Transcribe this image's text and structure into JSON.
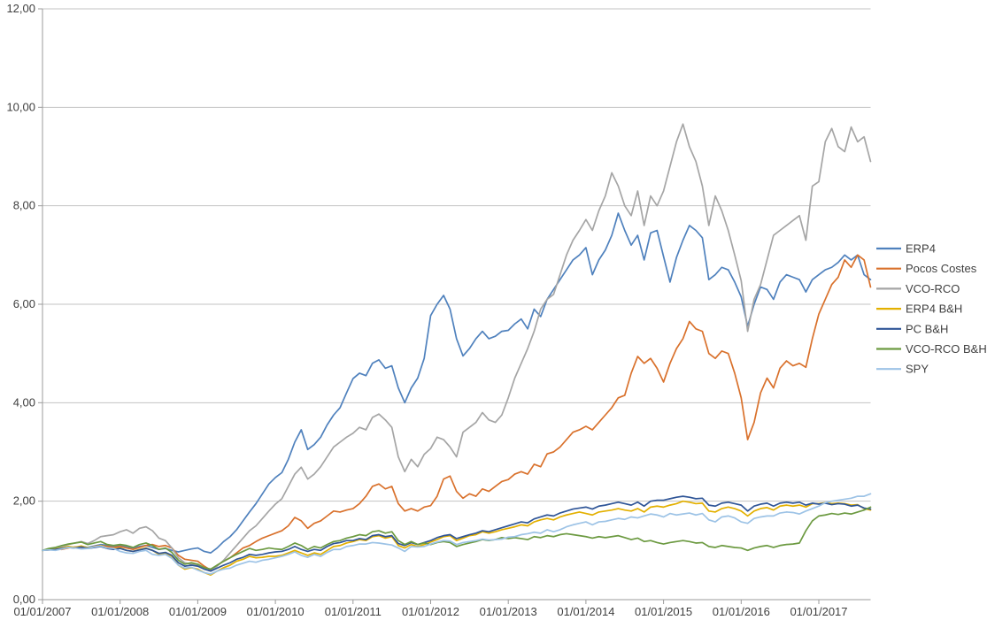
{
  "chart_data": {
    "type": "line",
    "title": "",
    "xlabel": "",
    "ylabel": "",
    "grid": "horizontal",
    "legend_position": "right",
    "x_axis": {
      "tick_labels": [
        "01/01/2007",
        "01/01/2008",
        "01/01/2009",
        "01/01/2010",
        "01/01/2011",
        "01/01/2012",
        "01/01/2013",
        "01/01/2014",
        "01/01/2015",
        "01/01/2016",
        "01/01/2017"
      ],
      "tick_years": [
        2007,
        2008,
        2009,
        2010,
        2011,
        2012,
        2013,
        2014,
        2015,
        2016,
        2017
      ]
    },
    "y_axis": {
      "tick_labels": [
        "0,00",
        "2,00",
        "4,00",
        "6,00",
        "8,00",
        "10,00",
        "12,00"
      ],
      "tick_values": [
        0,
        2,
        4,
        6,
        8,
        10,
        12
      ],
      "ylim": [
        0,
        12
      ]
    },
    "x_start": 2007.0,
    "x_step_years": 0.0833333,
    "series": [
      {
        "name": "ERP4",
        "color": "#4F81BD",
        "values": [
          1.0,
          1.02,
          1.01,
          1.04,
          1.06,
          1.05,
          1.08,
          1.06,
          1.09,
          1.12,
          1.1,
          1.08,
          1.1,
          1.07,
          1.05,
          1.08,
          1.1,
          1.06,
          1.02,
          1.04,
          1.0,
          0.97,
          1.0,
          1.03,
          1.05,
          0.98,
          0.95,
          1.05,
          1.18,
          1.28,
          1.42,
          1.6,
          1.78,
          1.95,
          2.15,
          2.35,
          2.48,
          2.58,
          2.85,
          3.2,
          3.45,
          3.05,
          3.15,
          3.3,
          3.55,
          3.75,
          3.9,
          4.2,
          4.49,
          4.6,
          4.55,
          4.8,
          4.87,
          4.7,
          4.75,
          4.3,
          4.0,
          4.3,
          4.5,
          4.9,
          5.77,
          6.0,
          6.18,
          5.9,
          5.3,
          4.95,
          5.1,
          5.3,
          5.45,
          5.3,
          5.35,
          5.45,
          5.47,
          5.6,
          5.7,
          5.5,
          5.9,
          5.75,
          6.1,
          6.3,
          6.5,
          6.7,
          6.9,
          7.0,
          7.15,
          6.6,
          6.9,
          7.1,
          7.4,
          7.85,
          7.5,
          7.2,
          7.4,
          6.9,
          7.45,
          7.5,
          6.97,
          6.45,
          6.95,
          7.3,
          7.6,
          7.5,
          7.35,
          6.5,
          6.6,
          6.75,
          6.7,
          6.45,
          6.15,
          5.55,
          6.0,
          6.35,
          6.3,
          6.1,
          6.45,
          6.6,
          6.55,
          6.5,
          6.25,
          6.5,
          6.6,
          6.7,
          6.75,
          6.85,
          7.0,
          6.9,
          7.0,
          6.6,
          6.5
        ]
      },
      {
        "name": "Pocos Costes",
        "color": "#D9712C",
        "values": [
          1.0,
          1.01,
          1.03,
          1.02,
          1.05,
          1.07,
          1.06,
          1.04,
          1.08,
          1.1,
          1.08,
          1.06,
          1.08,
          1.05,
          1.02,
          1.06,
          1.1,
          1.12,
          1.08,
          1.1,
          1.05,
          0.9,
          0.82,
          0.8,
          0.78,
          0.68,
          0.6,
          0.7,
          0.78,
          0.85,
          0.95,
          1.05,
          1.1,
          1.18,
          1.25,
          1.3,
          1.35,
          1.4,
          1.5,
          1.67,
          1.6,
          1.45,
          1.55,
          1.6,
          1.7,
          1.8,
          1.78,
          1.82,
          1.85,
          1.95,
          2.1,
          2.3,
          2.35,
          2.25,
          2.3,
          1.95,
          1.8,
          1.85,
          1.8,
          1.88,
          1.91,
          2.1,
          2.45,
          2.51,
          2.2,
          2.06,
          2.15,
          2.1,
          2.25,
          2.2,
          2.3,
          2.4,
          2.44,
          2.55,
          2.6,
          2.55,
          2.75,
          2.7,
          2.96,
          3.0,
          3.1,
          3.25,
          3.4,
          3.45,
          3.52,
          3.45,
          3.6,
          3.75,
          3.9,
          4.1,
          4.15,
          4.6,
          4.94,
          4.8,
          4.9,
          4.7,
          4.42,
          4.8,
          5.1,
          5.3,
          5.65,
          5.5,
          5.45,
          5.0,
          4.9,
          5.05,
          5.0,
          4.6,
          4.1,
          3.25,
          3.6,
          4.2,
          4.5,
          4.3,
          4.7,
          4.85,
          4.75,
          4.8,
          4.72,
          5.3,
          5.8,
          6.1,
          6.4,
          6.55,
          6.9,
          6.75,
          7.0,
          6.9,
          6.35
        ]
      },
      {
        "name": "VCO-RCO",
        "color": "#A5A5A5",
        "values": [
          1.0,
          1.03,
          1.05,
          1.08,
          1.12,
          1.15,
          1.18,
          1.14,
          1.2,
          1.28,
          1.3,
          1.32,
          1.38,
          1.42,
          1.35,
          1.45,
          1.48,
          1.4,
          1.25,
          1.2,
          1.05,
          0.85,
          0.75,
          0.72,
          0.7,
          0.62,
          0.58,
          0.68,
          0.8,
          0.95,
          1.1,
          1.25,
          1.4,
          1.5,
          1.65,
          1.8,
          1.94,
          2.05,
          2.3,
          2.55,
          2.69,
          2.45,
          2.55,
          2.7,
          2.9,
          3.1,
          3.2,
          3.3,
          3.38,
          3.5,
          3.45,
          3.7,
          3.77,
          3.65,
          3.5,
          2.9,
          2.6,
          2.85,
          2.7,
          2.95,
          3.07,
          3.3,
          3.25,
          3.1,
          2.9,
          3.4,
          3.5,
          3.6,
          3.8,
          3.65,
          3.6,
          3.75,
          4.1,
          4.5,
          4.8,
          5.1,
          5.45,
          5.9,
          6.1,
          6.2,
          6.6,
          7.0,
          7.3,
          7.5,
          7.72,
          7.5,
          7.9,
          8.2,
          8.67,
          8.4,
          8.0,
          7.8,
          8.3,
          7.6,
          8.2,
          8.0,
          8.3,
          8.8,
          9.3,
          9.66,
          9.2,
          8.9,
          8.4,
          7.6,
          8.2,
          7.9,
          7.5,
          7.0,
          6.48,
          5.45,
          6.1,
          6.4,
          6.9,
          7.4,
          7.5,
          7.6,
          7.7,
          7.8,
          7.3,
          8.4,
          8.49,
          9.3,
          9.57,
          9.2,
          9.1,
          9.6,
          9.3,
          9.4,
          8.9
        ]
      },
      {
        "name": "ERP4 B&H",
        "color": "#E3B000",
        "values": [
          1.0,
          1.02,
          1.03,
          1.05,
          1.08,
          1.06,
          1.09,
          1.05,
          1.07,
          1.1,
          1.05,
          1.03,
          1.05,
          1.0,
          0.98,
          1.02,
          1.05,
          1.0,
          0.92,
          0.95,
          0.88,
          0.7,
          0.62,
          0.65,
          0.62,
          0.55,
          0.5,
          0.58,
          0.65,
          0.7,
          0.78,
          0.82,
          0.88,
          0.85,
          0.86,
          0.88,
          0.88,
          0.9,
          0.95,
          1.0,
          0.95,
          0.9,
          0.95,
          0.92,
          1.0,
          1.08,
          1.1,
          1.15,
          1.18,
          1.22,
          1.2,
          1.28,
          1.3,
          1.25,
          1.28,
          1.1,
          1.05,
          1.12,
          1.08,
          1.12,
          1.17,
          1.22,
          1.28,
          1.3,
          1.2,
          1.25,
          1.3,
          1.32,
          1.38,
          1.35,
          1.38,
          1.42,
          1.45,
          1.48,
          1.52,
          1.5,
          1.58,
          1.62,
          1.65,
          1.62,
          1.68,
          1.72,
          1.75,
          1.78,
          1.75,
          1.72,
          1.78,
          1.8,
          1.82,
          1.85,
          1.82,
          1.8,
          1.85,
          1.78,
          1.88,
          1.9,
          1.88,
          1.92,
          1.95,
          2.0,
          1.98,
          1.95,
          1.96,
          1.8,
          1.78,
          1.85,
          1.88,
          1.85,
          1.8,
          1.7,
          1.8,
          1.85,
          1.87,
          1.82,
          1.9,
          1.92,
          1.9,
          1.92,
          1.88,
          1.95,
          1.95,
          1.97,
          1.95,
          1.96,
          1.95,
          1.92,
          1.93,
          1.85,
          1.82
        ]
      },
      {
        "name": "PC B&H",
        "color": "#2F5597",
        "values": [
          1.0,
          1.01,
          1.02,
          1.04,
          1.06,
          1.05,
          1.07,
          1.04,
          1.06,
          1.08,
          1.04,
          1.02,
          1.04,
          1.0,
          0.98,
          1.01,
          1.04,
          1.0,
          0.94,
          0.96,
          0.9,
          0.75,
          0.68,
          0.7,
          0.68,
          0.62,
          0.58,
          0.64,
          0.7,
          0.75,
          0.82,
          0.86,
          0.92,
          0.9,
          0.92,
          0.95,
          0.97,
          0.98,
          1.02,
          1.08,
          1.02,
          0.98,
          1.02,
          1.0,
          1.08,
          1.14,
          1.16,
          1.2,
          1.2,
          1.24,
          1.22,
          1.3,
          1.32,
          1.28,
          1.3,
          1.14,
          1.1,
          1.16,
          1.12,
          1.16,
          1.2,
          1.26,
          1.3,
          1.32,
          1.24,
          1.28,
          1.32,
          1.35,
          1.4,
          1.38,
          1.42,
          1.46,
          1.5,
          1.54,
          1.58,
          1.56,
          1.64,
          1.68,
          1.72,
          1.7,
          1.76,
          1.8,
          1.84,
          1.86,
          1.88,
          1.84,
          1.9,
          1.92,
          1.95,
          1.98,
          1.95,
          1.92,
          1.98,
          1.9,
          2.0,
          2.02,
          2.02,
          2.05,
          2.08,
          2.1,
          2.08,
          2.05,
          2.06,
          1.92,
          1.9,
          1.96,
          1.98,
          1.95,
          1.92,
          1.8,
          1.9,
          1.94,
          1.96,
          1.9,
          1.96,
          1.98,
          1.96,
          1.98,
          1.92,
          1.96,
          1.94,
          1.96,
          1.93,
          1.95,
          1.94,
          1.9,
          1.92,
          1.86,
          1.84
        ]
      },
      {
        "name": "VCO-RCO B&H",
        "color": "#6C9A41",
        "values": [
          1.0,
          1.04,
          1.06,
          1.1,
          1.13,
          1.15,
          1.17,
          1.12,
          1.15,
          1.18,
          1.12,
          1.1,
          1.12,
          1.1,
          1.06,
          1.12,
          1.15,
          1.1,
          1.02,
          1.05,
          0.96,
          0.8,
          0.72,
          0.75,
          0.72,
          0.65,
          0.62,
          0.7,
          0.78,
          0.85,
          0.92,
          0.98,
          1.04,
          1.0,
          1.02,
          1.05,
          1.03,
          1.02,
          1.08,
          1.15,
          1.1,
          1.02,
          1.08,
          1.05,
          1.12,
          1.18,
          1.2,
          1.25,
          1.28,
          1.32,
          1.3,
          1.38,
          1.4,
          1.35,
          1.38,
          1.2,
          1.12,
          1.18,
          1.12,
          1.15,
          1.12,
          1.16,
          1.18,
          1.16,
          1.08,
          1.12,
          1.15,
          1.18,
          1.22,
          1.2,
          1.22,
          1.26,
          1.24,
          1.26,
          1.24,
          1.22,
          1.28,
          1.26,
          1.3,
          1.28,
          1.32,
          1.34,
          1.32,
          1.3,
          1.28,
          1.25,
          1.28,
          1.26,
          1.28,
          1.3,
          1.26,
          1.22,
          1.25,
          1.18,
          1.2,
          1.16,
          1.13,
          1.16,
          1.18,
          1.2,
          1.18,
          1.15,
          1.16,
          1.08,
          1.06,
          1.1,
          1.08,
          1.06,
          1.05,
          1.0,
          1.05,
          1.08,
          1.1,
          1.06,
          1.1,
          1.12,
          1.13,
          1.15,
          1.4,
          1.6,
          1.7,
          1.72,
          1.75,
          1.73,
          1.76,
          1.74,
          1.78,
          1.82,
          1.88
        ]
      },
      {
        "name": "SPY",
        "color": "#9DC3E6",
        "values": [
          1.0,
          1.01,
          1.0,
          1.03,
          1.06,
          1.05,
          1.03,
          1.04,
          1.07,
          1.09,
          1.05,
          1.04,
          0.98,
          0.95,
          0.94,
          0.98,
          1.0,
          0.92,
          0.9,
          0.92,
          0.84,
          0.7,
          0.64,
          0.66,
          0.6,
          0.55,
          0.52,
          0.58,
          0.62,
          0.64,
          0.7,
          0.74,
          0.78,
          0.76,
          0.8,
          0.82,
          0.85,
          0.88,
          0.92,
          0.97,
          0.9,
          0.86,
          0.92,
          0.88,
          0.96,
          1.02,
          1.02,
          1.08,
          1.1,
          1.13,
          1.13,
          1.16,
          1.15,
          1.13,
          1.11,
          1.05,
          0.98,
          1.08,
          1.07,
          1.08,
          1.13,
          1.17,
          1.2,
          1.19,
          1.12,
          1.16,
          1.18,
          1.2,
          1.23,
          1.21,
          1.22,
          1.23,
          1.27,
          1.28,
          1.32,
          1.34,
          1.37,
          1.35,
          1.42,
          1.38,
          1.42,
          1.48,
          1.52,
          1.55,
          1.58,
          1.52,
          1.58,
          1.59,
          1.62,
          1.65,
          1.63,
          1.68,
          1.66,
          1.7,
          1.74,
          1.72,
          1.68,
          1.75,
          1.72,
          1.74,
          1.76,
          1.72,
          1.75,
          1.62,
          1.58,
          1.68,
          1.7,
          1.66,
          1.58,
          1.55,
          1.65,
          1.68,
          1.7,
          1.7,
          1.76,
          1.78,
          1.77,
          1.74,
          1.8,
          1.85,
          1.9,
          1.97,
          2.0,
          2.02,
          2.04,
          2.06,
          2.1,
          2.1,
          2.15
        ]
      }
    ]
  },
  "style": {
    "background": "#FFFFFF",
    "gridline_color": "#C3C3C3",
    "axis_color": "#9B9B9B",
    "label_color": "#3F3F3F"
  }
}
